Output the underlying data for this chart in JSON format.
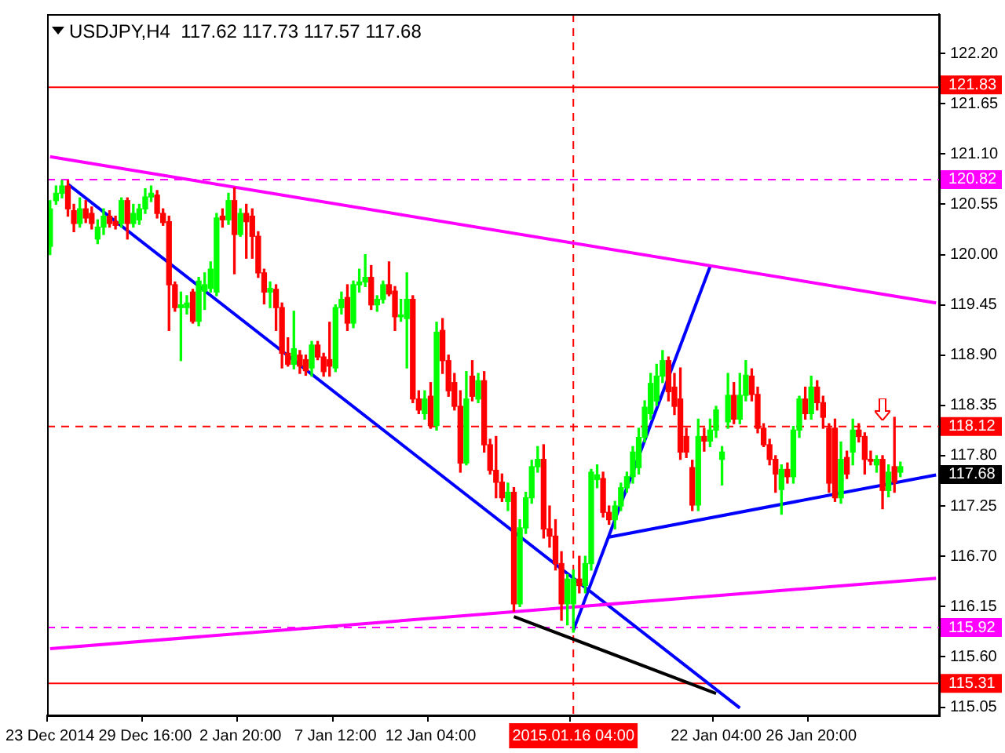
{
  "chart_data": {
    "type": "candlestick",
    "title": "USDJPY,H4  117.62 117.73 117.57 117.68",
    "categories": [
      "23 Dec 2014",
      null,
      null,
      null,
      null,
      null,
      null,
      null,
      null,
      null,
      null,
      null,
      null,
      null,
      null,
      null,
      "29 Dec 16:00",
      null,
      null,
      null,
      null,
      null,
      null,
      null,
      null,
      null,
      null,
      null,
      null,
      null,
      null,
      null,
      "2 Jan 20:00",
      null,
      null,
      null,
      null,
      null,
      null,
      null,
      null,
      null,
      null,
      null,
      null,
      null,
      null,
      null,
      "7 Jan 12:00",
      null,
      null,
      null,
      null,
      null,
      null,
      null,
      null,
      null,
      null,
      null,
      null,
      null,
      null,
      null,
      "12 Jan 04:00",
      null,
      null,
      null,
      null,
      null,
      null,
      null,
      null,
      null,
      null,
      null,
      null,
      null,
      null,
      null,
      null,
      null,
      null,
      null,
      null,
      null,
      null,
      null,
      "2015.01.16 04:00",
      null,
      null,
      null,
      null,
      null,
      null,
      null,
      null,
      null,
      null,
      null,
      null,
      null,
      null,
      null,
      null,
      null,
      null,
      null,
      null,
      null,
      null,
      null,
      "22 Jan 04:00",
      null,
      null,
      null,
      null,
      null,
      null,
      null,
      null,
      null,
      null,
      null,
      null,
      null,
      null,
      null,
      "26 Jan 20:00",
      null,
      null,
      null,
      null,
      null,
      null,
      null,
      null,
      null,
      null,
      null,
      null,
      null,
      null,
      null,
      null,
      null,
      null,
      null,
      null,
      null
    ],
    "ohlc": [
      [
        120.09,
        120.59,
        120.0,
        120.5
      ],
      [
        120.59,
        120.75,
        120.55,
        120.67
      ],
      [
        120.67,
        120.81,
        120.62,
        120.75
      ],
      [
        120.75,
        120.81,
        120.42,
        120.5
      ],
      [
        120.48,
        120.55,
        120.25,
        120.34
      ],
      [
        120.34,
        120.62,
        120.3,
        120.5
      ],
      [
        120.5,
        120.59,
        120.35,
        120.4
      ],
      [
        120.45,
        120.52,
        120.28,
        120.34
      ],
      [
        120.17,
        120.38,
        120.12,
        120.3
      ],
      [
        120.3,
        120.5,
        120.22,
        120.42
      ],
      [
        120.42,
        120.48,
        120.3,
        120.34
      ],
      [
        120.36,
        120.42,
        120.28,
        120.32
      ],
      [
        120.34,
        120.62,
        120.3,
        120.59
      ],
      [
        120.59,
        120.62,
        120.17,
        120.34
      ],
      [
        120.34,
        120.55,
        120.3,
        120.45
      ],
      [
        120.38,
        120.55,
        120.33,
        120.5
      ],
      [
        120.5,
        120.72,
        120.45,
        120.63
      ],
      [
        120.63,
        120.75,
        120.58,
        120.67
      ],
      [
        120.65,
        120.7,
        120.4,
        120.45
      ],
      [
        120.45,
        120.5,
        120.32,
        120.35
      ],
      [
        120.36,
        120.42,
        119.17,
        119.67
      ],
      [
        119.67,
        119.7,
        119.38,
        119.42
      ],
      [
        119.42,
        119.59,
        118.84,
        119.45
      ],
      [
        119.42,
        119.55,
        119.35,
        119.47
      ],
      [
        119.59,
        119.62,
        119.25,
        119.27
      ],
      [
        119.27,
        119.75,
        119.22,
        119.71
      ],
      [
        119.6,
        119.8,
        119.4,
        119.67
      ],
      [
        119.63,
        119.92,
        119.59,
        119.84
      ],
      [
        119.59,
        120.45,
        119.55,
        120.4
      ],
      [
        120.42,
        120.5,
        120.3,
        120.38
      ],
      [
        120.38,
        120.67,
        120.33,
        120.59
      ],
      [
        120.59,
        120.73,
        119.79,
        120.22
      ],
      [
        120.22,
        120.5,
        120.2,
        120.45
      ],
      [
        120.45,
        120.55,
        119.96,
        120.36
      ],
      [
        120.42,
        120.5,
        119.96,
        120.2
      ],
      [
        120.2,
        120.25,
        119.75,
        119.8
      ],
      [
        119.8,
        119.84,
        119.46,
        119.59
      ],
      [
        119.59,
        119.7,
        119.42,
        119.63
      ],
      [
        119.62,
        119.67,
        119.17,
        119.42
      ],
      [
        119.42,
        119.47,
        118.76,
        118.92
      ],
      [
        118.92,
        119.09,
        118.78,
        118.8
      ],
      [
        118.8,
        119.38,
        118.75,
        118.97
      ],
      [
        118.9,
        118.95,
        118.7,
        118.78
      ],
      [
        118.85,
        118.9,
        118.68,
        118.73
      ],
      [
        118.76,
        119.05,
        118.67,
        119.01
      ],
      [
        119.01,
        119.05,
        118.85,
        118.88
      ],
      [
        118.88,
        118.92,
        118.67,
        118.72
      ],
      [
        118.85,
        119.26,
        118.67,
        118.78
      ],
      [
        118.76,
        119.45,
        118.72,
        119.42
      ],
      [
        119.42,
        119.59,
        119.35,
        119.51
      ],
      [
        119.53,
        119.67,
        119.17,
        119.25
      ],
      [
        119.25,
        119.71,
        119.2,
        119.67
      ],
      [
        119.67,
        119.84,
        119.59,
        119.7
      ],
      [
        119.7,
        120.0,
        119.65,
        119.75
      ],
      [
        119.75,
        119.88,
        119.4,
        119.45
      ],
      [
        119.45,
        119.55,
        119.38,
        119.51
      ],
      [
        119.51,
        119.71,
        119.47,
        119.67
      ],
      [
        119.67,
        119.92,
        119.55,
        119.57
      ],
      [
        119.6,
        119.65,
        119.17,
        119.32
      ],
      [
        119.32,
        119.51,
        119.27,
        119.34
      ],
      [
        119.3,
        119.8,
        118.76,
        119.51
      ],
      [
        119.51,
        119.55,
        118.38,
        118.42
      ],
      [
        118.42,
        118.51,
        118.26,
        118.3
      ],
      [
        118.26,
        118.51,
        118.2,
        118.42
      ],
      [
        118.45,
        118.6,
        118.1,
        118.13
      ],
      [
        118.13,
        119.26,
        118.08,
        119.15
      ],
      [
        119.17,
        119.3,
        118.7,
        118.84
      ],
      [
        118.84,
        118.9,
        118.45,
        118.51
      ],
      [
        118.6,
        118.7,
        118.3,
        118.34
      ],
      [
        118.34,
        118.51,
        117.62,
        117.72
      ],
      [
        117.72,
        118.72,
        117.7,
        118.42
      ],
      [
        118.67,
        118.84,
        118.4,
        118.45
      ],
      [
        118.42,
        118.7,
        118.38,
        118.62
      ],
      [
        118.62,
        118.72,
        117.84,
        117.92
      ],
      [
        117.92,
        117.98,
        117.6,
        117.64
      ],
      [
        117.64,
        118.01,
        117.34,
        117.51
      ],
      [
        117.51,
        117.6,
        117.3,
        117.34
      ],
      [
        117.3,
        117.5,
        117.2,
        117.4
      ],
      [
        117.4,
        117.45,
        116.1,
        116.18
      ],
      [
        116.18,
        117.1,
        116.15,
        117.01
      ],
      [
        117.01,
        117.4,
        116.95,
        117.34
      ],
      [
        117.34,
        117.75,
        117.28,
        117.68
      ],
      [
        117.68,
        117.9,
        117.62,
        117.76
      ],
      [
        117.76,
        117.92,
        116.9,
        117.0
      ],
      [
        117.0,
        117.25,
        116.8,
        116.92
      ],
      [
        116.92,
        117.1,
        116.55,
        116.62
      ],
      [
        116.62,
        116.75,
        116.0,
        116.18
      ],
      [
        116.18,
        116.5,
        115.95,
        116.45
      ],
      [
        116.18,
        116.55,
        115.87,
        116.45
      ],
      [
        116.45,
        116.7,
        116.3,
        116.38
      ],
      [
        116.38,
        116.7,
        116.3,
        116.62
      ],
      [
        116.62,
        117.65,
        116.55,
        117.62
      ],
      [
        117.54,
        117.7,
        117.45,
        117.59
      ],
      [
        117.55,
        117.62,
        117.13,
        117.18
      ],
      [
        117.18,
        117.25,
        117.05,
        117.1
      ],
      [
        117.1,
        117.3,
        117.0,
        117.25
      ],
      [
        117.25,
        117.5,
        117.2,
        117.45
      ],
      [
        117.45,
        117.62,
        117.4,
        117.57
      ],
      [
        117.57,
        117.9,
        117.5,
        117.84
      ],
      [
        117.67,
        118.1,
        117.6,
        118.0
      ],
      [
        118.0,
        118.4,
        117.95,
        118.33
      ],
      [
        118.26,
        118.7,
        118.2,
        118.59
      ],
      [
        118.4,
        118.8,
        118.35,
        118.67
      ],
      [
        118.67,
        118.95,
        118.6,
        118.84
      ],
      [
        118.84,
        118.88,
        118.4,
        118.5
      ],
      [
        118.55,
        118.7,
        118.25,
        118.34
      ],
      [
        118.42,
        118.76,
        117.76,
        117.84
      ],
      [
        118.01,
        118.1,
        117.78,
        117.84
      ],
      [
        117.67,
        117.75,
        117.2,
        117.26
      ],
      [
        117.26,
        118.2,
        117.2,
        118.01
      ],
      [
        118.01,
        118.1,
        117.85,
        117.96
      ],
      [
        117.96,
        118.2,
        117.9,
        118.08
      ],
      [
        118.08,
        118.34,
        118.0,
        118.3
      ],
      [
        117.76,
        117.9,
        117.48,
        117.84
      ],
      [
        118.17,
        118.7,
        118.1,
        118.46
      ],
      [
        118.46,
        118.6,
        118.15,
        118.2
      ],
      [
        118.2,
        118.7,
        118.15,
        118.46
      ],
      [
        118.46,
        118.84,
        118.4,
        118.68
      ],
      [
        118.67,
        118.75,
        118.4,
        118.47
      ],
      [
        118.47,
        118.55,
        118.05,
        118.1
      ],
      [
        118.1,
        118.15,
        117.9,
        117.92
      ],
      [
        117.92,
        117.98,
        117.7,
        117.76
      ],
      [
        117.76,
        117.8,
        117.4,
        117.6
      ],
      [
        117.43,
        117.7,
        117.16,
        117.65
      ],
      [
        117.65,
        117.72,
        117.5,
        117.57
      ],
      [
        117.57,
        118.12,
        117.5,
        118.08
      ],
      [
        118.08,
        118.45,
        118.0,
        118.42
      ],
      [
        118.42,
        118.55,
        118.2,
        118.26
      ],
      [
        118.26,
        118.67,
        118.2,
        118.55
      ],
      [
        118.55,
        118.62,
        118.3,
        118.38
      ],
      [
        118.38,
        118.45,
        118.1,
        118.22
      ],
      [
        118.1,
        118.15,
        117.4,
        117.5
      ],
      [
        118.1,
        118.2,
        117.3,
        117.34
      ],
      [
        117.34,
        117.95,
        117.28,
        117.76
      ],
      [
        117.78,
        117.85,
        117.55,
        117.6
      ],
      [
        117.84,
        118.2,
        117.7,
        118.08
      ],
      [
        118.08,
        118.15,
        117.95,
        118.01
      ],
      [
        118.01,
        118.05,
        117.6,
        117.76
      ],
      [
        117.76,
        117.85,
        117.7,
        117.74
      ],
      [
        117.7,
        117.8,
        117.62,
        117.76
      ],
      [
        117.76,
        117.8,
        117.22,
        117.42
      ],
      [
        117.42,
        117.7,
        117.35,
        117.62
      ],
      [
        117.68,
        118.22,
        117.4,
        117.51
      ],
      [
        117.62,
        117.73,
        117.57,
        117.68
      ],
      null,
      null,
      null,
      null,
      null,
      null
    ],
    "series": [
      {
        "type": "line",
        "color": "#ff00ff",
        "values": [
          121.07,
          null,
          null,
          null,
          null,
          null,
          null,
          null,
          null,
          null,
          null,
          null,
          null,
          null,
          null,
          null,
          null,
          null,
          null,
          null,
          null,
          null,
          null,
          null,
          null,
          null,
          null,
          null,
          null,
          null,
          null,
          null,
          null,
          null,
          null,
          null,
          null,
          null,
          null,
          null,
          null,
          null,
          null,
          null,
          null,
          null,
          null,
          null,
          null,
          null,
          null,
          null,
          null,
          null,
          null,
          null,
          null,
          null,
          null,
          null,
          null,
          null,
          null,
          null,
          null,
          null,
          null,
          null,
          null,
          null,
          null,
          null,
          null,
          null,
          null,
          null,
          null,
          null,
          null,
          null,
          null,
          null,
          null,
          null,
          null,
          null,
          null,
          null,
          null,
          null,
          null,
          null,
          null,
          null,
          null,
          null,
          null,
          null,
          null,
          null,
          null,
          null,
          null,
          null,
          null,
          null,
          null,
          null,
          null,
          null,
          null,
          null,
          null,
          null,
          null,
          null,
          null,
          null,
          null,
          null,
          null,
          null,
          null,
          null,
          null,
          null,
          null,
          null,
          null,
          null,
          null,
          null,
          null,
          null,
          null,
          null,
          null,
          null,
          null,
          null,
          null,
          null,
          null,
          null,
          null,
          null,
          null,
          null,
          null,
          119.47
        ]
      },
      {
        "type": "line",
        "color": "#ff00ff",
        "values": [
          115.69,
          null,
          null,
          null,
          null,
          null,
          null,
          null,
          null,
          null,
          null,
          null,
          null,
          null,
          null,
          null,
          null,
          null,
          null,
          null,
          null,
          null,
          null,
          null,
          null,
          null,
          null,
          null,
          null,
          null,
          null,
          null,
          null,
          null,
          null,
          null,
          null,
          null,
          null,
          null,
          null,
          null,
          null,
          null,
          null,
          null,
          null,
          null,
          null,
          null,
          null,
          null,
          null,
          null,
          null,
          null,
          null,
          null,
          null,
          null,
          null,
          null,
          null,
          null,
          null,
          null,
          null,
          null,
          null,
          null,
          null,
          null,
          null,
          null,
          null,
          null,
          null,
          null,
          null,
          null,
          null,
          null,
          null,
          null,
          null,
          null,
          null,
          null,
          null,
          null,
          null,
          null,
          null,
          null,
          null,
          null,
          null,
          null,
          null,
          null,
          null,
          null,
          null,
          null,
          null,
          null,
          null,
          null,
          null,
          null,
          null,
          null,
          null,
          null,
          null,
          null,
          null,
          null,
          null,
          null,
          null,
          null,
          null,
          null,
          null,
          null,
          null,
          null,
          null,
          null,
          null,
          null,
          null,
          null,
          null,
          null,
          null,
          null,
          null,
          null,
          null,
          null,
          null,
          null,
          null,
          null,
          null,
          null,
          null,
          116.46
        ]
      },
      {
        "type": "line",
        "color": "#0000ff",
        "values": [
          null,
          null,
          null,
          120.77,
          null,
          null,
          null,
          null,
          null,
          null,
          null,
          null,
          null,
          null,
          null,
          null,
          null,
          null,
          null,
          null,
          null,
          null,
          null,
          null,
          null,
          null,
          null,
          null,
          null,
          null,
          null,
          null,
          null,
          null,
          null,
          null,
          null,
          null,
          null,
          null,
          null,
          null,
          null,
          null,
          null,
          null,
          null,
          null,
          null,
          null,
          null,
          null,
          null,
          null,
          null,
          null,
          null,
          null,
          null,
          null,
          null,
          null,
          null,
          null,
          null,
          null,
          null,
          null,
          null,
          null,
          null,
          null,
          null,
          null,
          null,
          null,
          null,
          null,
          null,
          null,
          null,
          null,
          null,
          null,
          null,
          null,
          null,
          null,
          null,
          null,
          null,
          null,
          null,
          null,
          null,
          null,
          null,
          null,
          null,
          null,
          null,
          null,
          null,
          null,
          null,
          null,
          null,
          null,
          null,
          null,
          null,
          null,
          null,
          null,
          null,
          null,
          115.04,
          null,
          null,
          null,
          null,
          null,
          null,
          null,
          null,
          null,
          null,
          null,
          null,
          null,
          null,
          null,
          null,
          null,
          null,
          null,
          null,
          null,
          null,
          null,
          null,
          null,
          null,
          null,
          null,
          null,
          null,
          null,
          null,
          null
        ]
      },
      {
        "type": "line",
        "color": "#0000ff",
        "values": [
          null,
          null,
          null,
          null,
          null,
          null,
          null,
          null,
          null,
          null,
          null,
          null,
          null,
          null,
          null,
          null,
          null,
          null,
          null,
          null,
          null,
          null,
          null,
          null,
          null,
          null,
          null,
          null,
          null,
          null,
          null,
          null,
          null,
          null,
          null,
          null,
          null,
          null,
          null,
          null,
          null,
          null,
          null,
          null,
          null,
          null,
          null,
          null,
          null,
          null,
          null,
          null,
          null,
          null,
          null,
          null,
          null,
          null,
          null,
          null,
          null,
          null,
          null,
          null,
          null,
          null,
          null,
          null,
          null,
          null,
          null,
          null,
          null,
          null,
          null,
          null,
          null,
          null,
          null,
          null,
          null,
          null,
          null,
          null,
          null,
          null,
          null,
          null,
          null,
          null,
          null,
          null,
          null,
          null,
          116.91,
          null,
          null,
          null,
          null,
          null,
          null,
          null,
          null,
          null,
          null,
          null,
          null,
          null,
          null,
          null,
          null,
          null,
          null,
          null,
          null,
          null,
          null,
          null,
          null,
          null,
          null,
          null,
          null,
          null,
          null,
          null,
          null,
          null,
          null,
          null,
          null,
          null,
          null,
          null,
          null,
          null,
          null,
          null,
          null,
          null,
          null,
          null,
          null,
          null,
          null,
          null,
          null,
          null,
          null,
          117.59
        ]
      },
      {
        "type": "line",
        "color": "#0000ff",
        "values": [
          null,
          null,
          null,
          null,
          null,
          null,
          null,
          null,
          null,
          null,
          null,
          null,
          null,
          null,
          null,
          null,
          null,
          null,
          null,
          null,
          null,
          null,
          null,
          null,
          null,
          null,
          null,
          null,
          null,
          null,
          null,
          null,
          null,
          null,
          null,
          null,
          null,
          null,
          null,
          null,
          null,
          null,
          null,
          null,
          null,
          null,
          null,
          null,
          null,
          null,
          null,
          null,
          null,
          null,
          null,
          null,
          null,
          null,
          null,
          null,
          null,
          null,
          null,
          null,
          null,
          null,
          null,
          null,
          null,
          null,
          null,
          null,
          null,
          null,
          null,
          null,
          null,
          null,
          null,
          null,
          null,
          null,
          null,
          null,
          null,
          null,
          null,
          null,
          115.89,
          null,
          null,
          null,
          null,
          null,
          null,
          null,
          null,
          null,
          null,
          null,
          null,
          null,
          null,
          null,
          null,
          null,
          null,
          null,
          null,
          null,
          null,
          119.87,
          null,
          null,
          null,
          null,
          null,
          null,
          null,
          null,
          null,
          null,
          null,
          null,
          null,
          null,
          null,
          null,
          null,
          null,
          null,
          null,
          null,
          null,
          null,
          null,
          null,
          null,
          null,
          null,
          null,
          null,
          null,
          null,
          null,
          null,
          null,
          null,
          null,
          null
        ]
      },
      {
        "type": "line",
        "color": "#000000",
        "values": [
          null,
          null,
          null,
          null,
          null,
          null,
          null,
          null,
          null,
          null,
          null,
          null,
          null,
          null,
          null,
          null,
          null,
          null,
          null,
          null,
          null,
          null,
          null,
          null,
          null,
          null,
          null,
          null,
          null,
          null,
          null,
          null,
          null,
          null,
          null,
          null,
          null,
          null,
          null,
          null,
          null,
          null,
          null,
          null,
          null,
          null,
          null,
          null,
          null,
          null,
          null,
          null,
          null,
          null,
          null,
          null,
          null,
          null,
          null,
          null,
          null,
          null,
          null,
          null,
          null,
          null,
          null,
          null,
          null,
          null,
          null,
          null,
          null,
          null,
          null,
          null,
          null,
          null,
          116.04,
          null,
          null,
          null,
          null,
          null,
          null,
          null,
          null,
          null,
          null,
          null,
          null,
          null,
          null,
          null,
          null,
          null,
          null,
          null,
          null,
          null,
          null,
          null,
          null,
          null,
          null,
          null,
          null,
          null,
          null,
          null,
          null,
          null,
          115.2,
          null,
          null,
          null,
          null,
          null,
          null,
          null,
          null,
          null,
          null,
          null,
          null,
          null,
          null,
          null,
          null,
          null,
          null,
          null,
          null,
          null,
          null,
          null,
          null,
          null,
          null,
          null,
          null,
          null,
          null,
          null,
          null,
          null,
          null,
          null,
          null,
          null
        ]
      }
    ],
    "ylim": [
      114.96,
      122.63
    ],
    "yticks": [
      {
        "value": 115.05,
        "label": "115.05"
      },
      {
        "value": 115.6,
        "label": "115.60"
      },
      {
        "value": 116.15,
        "label": "116.15"
      },
      {
        "value": 116.7,
        "label": "116.70"
      },
      {
        "value": 117.25,
        "label": "117.25"
      },
      {
        "value": 117.8,
        "label": "117.80"
      },
      {
        "value": 118.35,
        "label": "118.35"
      },
      {
        "value": 118.9,
        "label": "118.90"
      },
      {
        "value": 119.45,
        "label": "119.45"
      },
      {
        "value": 120.0,
        "label": "120.00"
      },
      {
        "value": 120.55,
        "label": "120.55"
      },
      {
        "value": 121.1,
        "label": "121.10"
      },
      {
        "value": 121.65,
        "label": "121.65"
      },
      {
        "value": 122.2,
        "label": "122.20"
      }
    ],
    "ref_lines": [
      {
        "axis": "y",
        "value": 121.83,
        "label": "121.83",
        "color": "#ff0000",
        "line_style": "solid"
      },
      {
        "axis": "y",
        "value": 120.82,
        "label": "120.82",
        "color": "#ff00ff",
        "line_style": "dashed"
      },
      {
        "axis": "y",
        "value": 118.12,
        "label": "118.12",
        "color": "#ff0000",
        "line_style": "dashed"
      },
      {
        "axis": "y",
        "value": 115.92,
        "label": "115.92",
        "color": "#ff00ff",
        "line_style": "dashed"
      },
      {
        "axis": "y",
        "value": 115.31,
        "label": "115.31",
        "color": "#ff0000",
        "line_style": "solid"
      },
      {
        "axis": "x",
        "value": "2015.01.16 04:00",
        "color": "#ff0000",
        "line_style": "dashed"
      }
    ],
    "annotations": [
      "117.68"
    ]
  }
}
